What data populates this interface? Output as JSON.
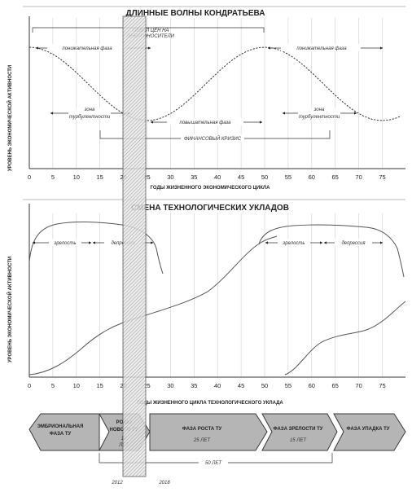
{
  "top": {
    "title": "ДЛИННЫЕ ВОЛНЫ КОНДРАТЬЕВА",
    "ylabel": "УРОВЕНЬ ЭКОНОМИЧЕСКОЙ АКТИВНОСТИ",
    "xlabel": "ГОДЫ ЖИЗНЕННОГО ЭКОНОМИЧЕСКОГО ЦИКЛА",
    "price_label_1": "ОБВАЛ ЦЕН НА",
    "price_label_2": "ЭНЕРГОНОСИТЕЛИ",
    "down_phase_1": "понижательная фаза",
    "down_phase_2": "понижательная фаза",
    "up_phase": "повышательная фаза",
    "zone_a_1": "зона",
    "zone_a_2": "турбулентности",
    "zone_b_1": "зона",
    "zone_b_2": "турбулентности",
    "crisis": "ФИНАНСОВЫЙ КРИЗИС"
  },
  "bottom": {
    "title": "СМЕНА ТЕХНОЛОГИЧЕСКИХ УКЛАДОВ",
    "ylabel": "УРОВЕНЬ ЭКОНОМИЧЕСКОЙ АКТИВНОСТИ",
    "xlabel": "ГОДЫ ЖИЗНЕННОГО ЦИКЛА ТЕХНОЛОГИЧЕСКОГО УКЛАДА",
    "maturity_1": "зрелость",
    "depression_1": "депрессия",
    "maturity_2": "зрелость",
    "depression_2": "депрессия"
  },
  "phases": [
    {
      "line1": "ЭМБРИОНАЛЬНАЯ",
      "line2": "ФАЗА ТУ",
      "line3": ""
    },
    {
      "line1": "РОДЫ",
      "line2": "НОВОГО ТУ",
      "line3": ""
    },
    {
      "line1": "ФАЗА РОСТА ТУ",
      "line2": "",
      "line3": ""
    },
    {
      "line1": "ФАЗА ЗРЕЛОСТИ ТУ",
      "line2": "",
      "line3": ""
    },
    {
      "line1": "ФАЗА УПАДКА ТУ",
      "line2": "",
      "line3": ""
    }
  ],
  "phase_years": {
    "birth_years": "10",
    "birth_unit": "ЛЕТ",
    "growth": "25 ЛЕТ",
    "maturity": "15 ЛЕТ",
    "total": "50 ЛЕТ",
    "year_start": "2012",
    "year_end": "2018"
  },
  "ticks": [
    "0",
    "5",
    "10",
    "15",
    "20",
    "25",
    "30",
    "35",
    "40",
    "45",
    "50",
    "55",
    "60",
    "65",
    "70",
    "75"
  ],
  "colors": {
    "hatch": "#888888",
    "arrow_fill": "#b5b5b5",
    "arrow_stroke": "#3a3a3a",
    "curve": "#555555"
  }
}
